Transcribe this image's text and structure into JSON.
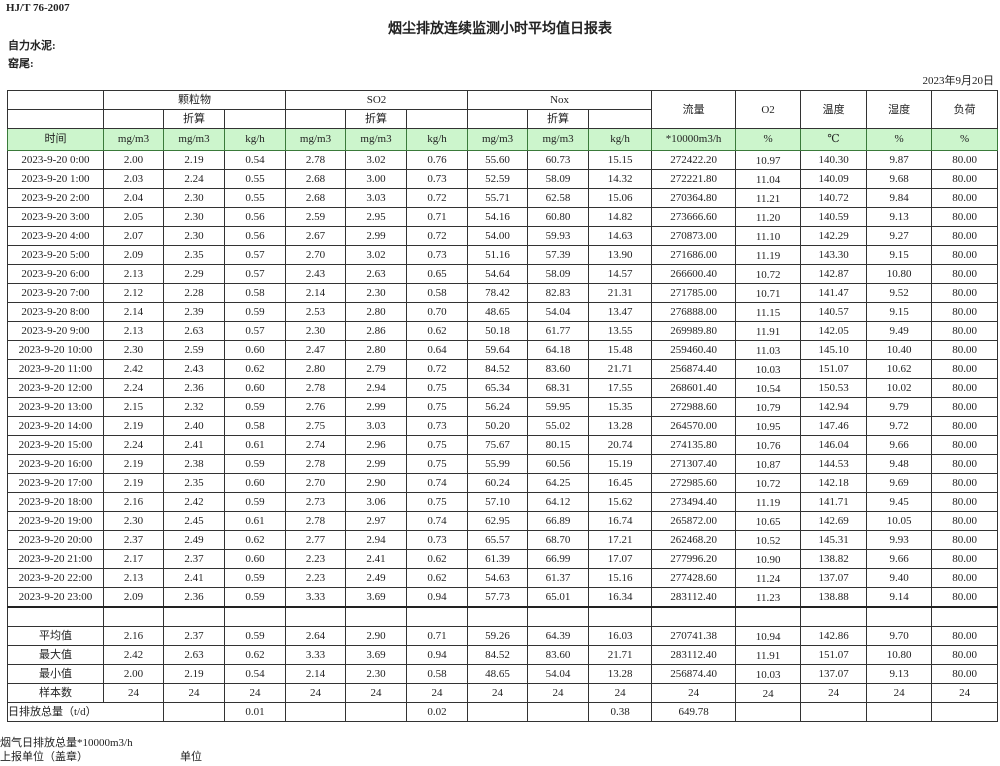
{
  "standard": "HJ/T  76-2007",
  "title": "烟尘排放连续监测小时平均值日报表",
  "org_label": "自力水泥:",
  "location_label": "窑尾:",
  "date": "2023年9月20日",
  "header": {
    "particulate": "颗粒物",
    "so2": "SO2",
    "nox": "Nox",
    "converted": "折算",
    "flow": "流量",
    "o2": "O2",
    "temperature": "温度",
    "humidity": "湿度",
    "load": "负荷"
  },
  "units": [
    "时间",
    "mg/m3",
    "mg/m3",
    "kg/h",
    "mg/m3",
    "mg/m3",
    "kg/h",
    "mg/m3",
    "mg/m3",
    "kg/h",
    "*10000m3/h",
    "%",
    "℃",
    "%",
    "%"
  ],
  "rows": [
    [
      "2023-9-20 0:00",
      "2.00",
      "2.19",
      "0.54",
      "2.78",
      "3.02",
      "0.76",
      "55.60",
      "60.73",
      "15.15",
      "272422.20",
      "10.97",
      "140.30",
      "9.87",
      "80.00"
    ],
    [
      "2023-9-20 1:00",
      "2.03",
      "2.24",
      "0.55",
      "2.68",
      "3.00",
      "0.73",
      "52.59",
      "58.09",
      "14.32",
      "272221.80",
      "11.04",
      "140.09",
      "9.68",
      "80.00"
    ],
    [
      "2023-9-20 2:00",
      "2.04",
      "2.30",
      "0.55",
      "2.68",
      "3.03",
      "0.72",
      "55.71",
      "62.58",
      "15.06",
      "270364.80",
      "11.21",
      "140.72",
      "9.84",
      "80.00"
    ],
    [
      "2023-9-20 3:00",
      "2.05",
      "2.30",
      "0.56",
      "2.59",
      "2.95",
      "0.71",
      "54.16",
      "60.80",
      "14.82",
      "273666.60",
      "11.20",
      "140.59",
      "9.13",
      "80.00"
    ],
    [
      "2023-9-20 4:00",
      "2.07",
      "2.30",
      "0.56",
      "2.67",
      "2.99",
      "0.72",
      "54.00",
      "59.93",
      "14.63",
      "270873.00",
      "11.10",
      "142.29",
      "9.27",
      "80.00"
    ],
    [
      "2023-9-20 5:00",
      "2.09",
      "2.35",
      "0.57",
      "2.70",
      "3.02",
      "0.73",
      "51.16",
      "57.39",
      "13.90",
      "271686.00",
      "11.19",
      "143.30",
      "9.15",
      "80.00"
    ],
    [
      "2023-9-20 6:00",
      "2.13",
      "2.29",
      "0.57",
      "2.43",
      "2.63",
      "0.65",
      "54.64",
      "58.09",
      "14.57",
      "266600.40",
      "10.72",
      "142.87",
      "10.80",
      "80.00"
    ],
    [
      "2023-9-20 7:00",
      "2.12",
      "2.28",
      "0.58",
      "2.14",
      "2.30",
      "0.58",
      "78.42",
      "82.83",
      "21.31",
      "271785.00",
      "10.71",
      "141.47",
      "9.52",
      "80.00"
    ],
    [
      "2023-9-20 8:00",
      "2.14",
      "2.39",
      "0.59",
      "2.53",
      "2.80",
      "0.70",
      "48.65",
      "54.04",
      "13.47",
      "276888.00",
      "11.15",
      "140.57",
      "9.15",
      "80.00"
    ],
    [
      "2023-9-20 9:00",
      "2.13",
      "2.63",
      "0.57",
      "2.30",
      "2.86",
      "0.62",
      "50.18",
      "61.77",
      "13.55",
      "269989.80",
      "11.91",
      "142.05",
      "9.49",
      "80.00"
    ],
    [
      "2023-9-20 10:00",
      "2.30",
      "2.59",
      "0.60",
      "2.47",
      "2.80",
      "0.64",
      "59.64",
      "64.18",
      "15.48",
      "259460.40",
      "11.03",
      "145.10",
      "10.40",
      "80.00"
    ],
    [
      "2023-9-20 11:00",
      "2.42",
      "2.43",
      "0.62",
      "2.80",
      "2.79",
      "0.72",
      "84.52",
      "83.60",
      "21.71",
      "256874.40",
      "10.03",
      "151.07",
      "10.62",
      "80.00"
    ],
    [
      "2023-9-20 12:00",
      "2.24",
      "2.36",
      "0.60",
      "2.78",
      "2.94",
      "0.75",
      "65.34",
      "68.31",
      "17.55",
      "268601.40",
      "10.54",
      "150.53",
      "10.02",
      "80.00"
    ],
    [
      "2023-9-20 13:00",
      "2.15",
      "2.32",
      "0.59",
      "2.76",
      "2.99",
      "0.75",
      "56.24",
      "59.95",
      "15.35",
      "272988.60",
      "10.79",
      "142.94",
      "9.79",
      "80.00"
    ],
    [
      "2023-9-20 14:00",
      "2.19",
      "2.40",
      "0.58",
      "2.75",
      "3.03",
      "0.73",
      "50.20",
      "55.02",
      "13.28",
      "264570.00",
      "10.95",
      "147.46",
      "9.72",
      "80.00"
    ],
    [
      "2023-9-20 15:00",
      "2.24",
      "2.41",
      "0.61",
      "2.74",
      "2.96",
      "0.75",
      "75.67",
      "80.15",
      "20.74",
      "274135.80",
      "10.76",
      "146.04",
      "9.66",
      "80.00"
    ],
    [
      "2023-9-20 16:00",
      "2.19",
      "2.38",
      "0.59",
      "2.78",
      "2.99",
      "0.75",
      "55.99",
      "60.56",
      "15.19",
      "271307.40",
      "10.87",
      "144.53",
      "9.48",
      "80.00"
    ],
    [
      "2023-9-20 17:00",
      "2.19",
      "2.35",
      "0.60",
      "2.70",
      "2.90",
      "0.74",
      "60.24",
      "64.25",
      "16.45",
      "272985.60",
      "10.72",
      "142.18",
      "9.69",
      "80.00"
    ],
    [
      "2023-9-20 18:00",
      "2.16",
      "2.42",
      "0.59",
      "2.73",
      "3.06",
      "0.75",
      "57.10",
      "64.12",
      "15.62",
      "273494.40",
      "11.19",
      "141.71",
      "9.45",
      "80.00"
    ],
    [
      "2023-9-20 19:00",
      "2.30",
      "2.45",
      "0.61",
      "2.78",
      "2.97",
      "0.74",
      "62.95",
      "66.89",
      "16.74",
      "265872.00",
      "10.65",
      "142.69",
      "10.05",
      "80.00"
    ],
    [
      "2023-9-20 20:00",
      "2.37",
      "2.49",
      "0.62",
      "2.77",
      "2.94",
      "0.73",
      "65.57",
      "68.70",
      "17.21",
      "262468.20",
      "10.52",
      "145.31",
      "9.93",
      "80.00"
    ],
    [
      "2023-9-20 21:00",
      "2.17",
      "2.37",
      "0.60",
      "2.23",
      "2.41",
      "0.62",
      "61.39",
      "66.99",
      "17.07",
      "277996.20",
      "10.90",
      "138.82",
      "9.66",
      "80.00"
    ],
    [
      "2023-9-20 22:00",
      "2.13",
      "2.41",
      "0.59",
      "2.23",
      "2.49",
      "0.62",
      "54.63",
      "61.37",
      "15.16",
      "277428.60",
      "11.24",
      "137.07",
      "9.40",
      "80.00"
    ],
    [
      "2023-9-20 23:00",
      "2.09",
      "2.36",
      "0.59",
      "3.33",
      "3.69",
      "0.94",
      "57.73",
      "65.01",
      "16.34",
      "283112.40",
      "11.23",
      "138.88",
      "9.14",
      "80.00"
    ]
  ],
  "summary": [
    [
      "平均值",
      "2.16",
      "2.37",
      "0.59",
      "2.64",
      "2.90",
      "0.71",
      "59.26",
      "64.39",
      "16.03",
      "270741.38",
      "10.94",
      "142.86",
      "9.70",
      "80.00"
    ],
    [
      "最大值",
      "2.42",
      "2.63",
      "0.62",
      "3.33",
      "3.69",
      "0.94",
      "84.52",
      "83.60",
      "21.71",
      "283112.40",
      "11.91",
      "151.07",
      "10.80",
      "80.00"
    ],
    [
      "最小值",
      "2.00",
      "2.19",
      "0.54",
      "2.14",
      "2.30",
      "0.58",
      "48.65",
      "54.04",
      "13.28",
      "256874.40",
      "10.03",
      "137.07",
      "9.13",
      "80.00"
    ],
    [
      "样本数",
      "24",
      "24",
      "24",
      "24",
      "24",
      "24",
      "24",
      "24",
      "24",
      "24",
      "24",
      "24",
      "24",
      "24"
    ]
  ],
  "daily_total": {
    "label": "日排放总量（t/d）",
    "values": [
      "",
      "0.01",
      "",
      "",
      "0.02",
      "",
      "",
      "0.38",
      "649.78",
      "",
      "",
      "",
      ""
    ]
  },
  "footer": {
    "flue_gas_total": "烟气日排放总量*10000m3/h",
    "reporting_unit": "上报单位（盖章）",
    "unit": "单位"
  }
}
